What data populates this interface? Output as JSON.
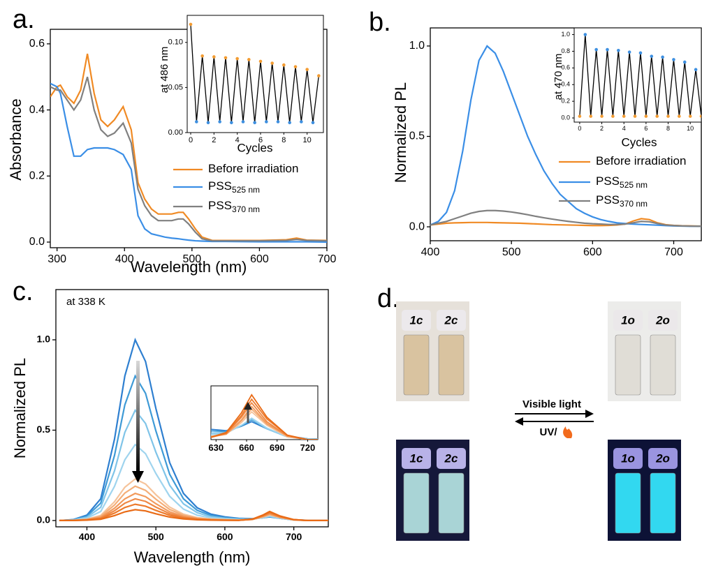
{
  "chart_data": [
    {
      "type": "line",
      "panel_label": "a.",
      "xlabel": "Wavelength (nm)",
      "ylabel": "Absorbance",
      "x": [
        290,
        300,
        305,
        315,
        325,
        335,
        345,
        355,
        365,
        375,
        385,
        398,
        410,
        420,
        430,
        440,
        450,
        460,
        470,
        480,
        487,
        495,
        505,
        515,
        530,
        550,
        600,
        640,
        655,
        670,
        700
      ],
      "series": [
        {
          "name": "Before irradiation",
          "color": "#f08a24",
          "values": [
            0.44,
            0.47,
            0.475,
            0.44,
            0.42,
            0.46,
            0.57,
            0.45,
            0.37,
            0.35,
            0.37,
            0.41,
            0.34,
            0.18,
            0.13,
            0.1,
            0.085,
            0.085,
            0.085,
            0.09,
            0.09,
            0.07,
            0.04,
            0.015,
            0.005,
            0.005,
            0.005,
            0.007,
            0.012,
            0.006,
            0.005
          ]
        },
        {
          "name": "PSS",
          "subscript": "525 nm",
          "color": "#3a8ee6",
          "values": [
            0.48,
            0.47,
            0.45,
            0.35,
            0.26,
            0.26,
            0.28,
            0.285,
            0.285,
            0.285,
            0.28,
            0.265,
            0.22,
            0.08,
            0.04,
            0.025,
            0.02,
            0.015,
            0.012,
            0.01,
            0.008,
            0.006,
            0.004,
            0.003,
            0.002,
            0.002,
            0.001,
            0.001,
            0.001,
            0.001,
            0.0
          ]
        },
        {
          "name": "PSS",
          "subscript": "370 nm",
          "color": "#808080",
          "values": [
            0.47,
            0.46,
            0.46,
            0.43,
            0.4,
            0.43,
            0.5,
            0.4,
            0.34,
            0.32,
            0.33,
            0.36,
            0.3,
            0.16,
            0.11,
            0.08,
            0.065,
            0.065,
            0.065,
            0.07,
            0.07,
            0.055,
            0.03,
            0.01,
            0.004,
            0.004,
            0.004,
            0.005,
            0.008,
            0.005,
            0.004
          ]
        }
      ],
      "xlim": [
        290,
        700
      ],
      "xticks": [
        300,
        400,
        500,
        600,
        700
      ],
      "ylim": [
        -0.017,
        0.644
      ],
      "yticks": [
        {
          "value": 0,
          "label": "0.0"
        },
        0.2,
        0.4,
        0.6
      ],
      "inset": {
        "xlabel": "Cycles",
        "ylabel": "at 486 nm",
        "line_color": "#000000",
        "point_colors": [
          "#f39c32",
          "#3d8fe0"
        ],
        "x": [
          0,
          0.5,
          1,
          1.5,
          2,
          2.5,
          3,
          3.5,
          4,
          4.5,
          5,
          5.5,
          6,
          6.5,
          7,
          7.5,
          8,
          8.5,
          9,
          9.5,
          10,
          10.5,
          11
        ],
        "values": [
          0.12,
          0.012,
          0.085,
          0.011,
          0.084,
          0.012,
          0.083,
          0.011,
          0.082,
          0.012,
          0.081,
          0.011,
          0.079,
          0.012,
          0.077,
          0.012,
          0.075,
          0.011,
          0.073,
          0.012,
          0.07,
          0.011,
          0.063
        ],
        "xlim": [
          -0.3,
          11.4
        ],
        "xticks": [
          0,
          2,
          4,
          6,
          8,
          10
        ],
        "ylim": [
          0,
          0.13
        ],
        "yticks": [
          {
            "value": 0,
            "label": "0.00"
          },
          {
            "value": 0.05,
            "label": "0.05"
          },
          {
            "value": 0.1,
            "label": "0.10"
          }
        ]
      }
    },
    {
      "type": "line",
      "panel_label": "b.",
      "ylabel": "Normalized PL",
      "x": [
        400,
        410,
        420,
        430,
        440,
        450,
        460,
        470,
        480,
        490,
        500,
        510,
        520,
        530,
        540,
        550,
        560,
        570,
        580,
        590,
        600,
        610,
        620,
        630,
        640,
        650,
        660,
        670,
        680,
        690,
        700,
        710,
        720,
        730,
        740,
        750
      ],
      "series": [
        {
          "name": "Before irradiation",
          "color": "#f08a24",
          "values": [
            0.01,
            0.015,
            0.02,
            0.022,
            0.023,
            0.024,
            0.024,
            0.024,
            0.023,
            0.022,
            0.021,
            0.02,
            0.018,
            0.016,
            0.014,
            0.012,
            0.011,
            0.01,
            0.009,
            0.008,
            0.007,
            0.007,
            0.008,
            0.01,
            0.015,
            0.032,
            0.045,
            0.04,
            0.022,
            0.012,
            0.008,
            0.006,
            0.005,
            0.004,
            0.004,
            0.003
          ]
        },
        {
          "name": "PSS",
          "subscript": "525 nm",
          "color": "#3a8ee6",
          "values": [
            0.01,
            0.03,
            0.08,
            0.2,
            0.42,
            0.7,
            0.92,
            1.0,
            0.96,
            0.86,
            0.74,
            0.62,
            0.5,
            0.4,
            0.31,
            0.24,
            0.18,
            0.14,
            0.1,
            0.075,
            0.055,
            0.04,
            0.03,
            0.022,
            0.018,
            0.015,
            0.013,
            0.011,
            0.009,
            0.007,
            0.005,
            0.004,
            0.003,
            0.003,
            0.002,
            0.002
          ]
        },
        {
          "name": "PSS",
          "subscript": "370 nm",
          "color": "#808080",
          "values": [
            0.01,
            0.02,
            0.03,
            0.045,
            0.06,
            0.075,
            0.085,
            0.09,
            0.09,
            0.087,
            0.082,
            0.075,
            0.067,
            0.058,
            0.05,
            0.043,
            0.036,
            0.03,
            0.025,
            0.02,
            0.017,
            0.015,
            0.013,
            0.013,
            0.015,
            0.022,
            0.03,
            0.028,
            0.018,
            0.01,
            0.007,
            0.005,
            0.004,
            0.003,
            0.003,
            0.002
          ]
        }
      ],
      "xlim": [
        400,
        734
      ],
      "xticks": [
        400,
        500,
        600,
        700
      ],
      "ylim": [
        -0.077,
        1.1
      ],
      "yticks": [
        {
          "value": 0,
          "label": "0.0"
        },
        0.5,
        {
          "value": 1,
          "label": "1.0"
        }
      ],
      "inset": {
        "xlabel": "Cycles",
        "ylabel": "at 470 nm",
        "line_color": "#000000",
        "point_colors": [
          "#f39c32",
          "#3d8fe0"
        ],
        "x": [
          0,
          0.5,
          1,
          1.5,
          2,
          2.5,
          3,
          3.5,
          4,
          4.5,
          5,
          5.5,
          6,
          6.5,
          7,
          7.5,
          8,
          8.5,
          9,
          9.5,
          10,
          10.5,
          11
        ],
        "values": [
          0.02,
          1.0,
          0.02,
          0.82,
          0.02,
          0.82,
          0.02,
          0.81,
          0.02,
          0.79,
          0.02,
          0.78,
          0.02,
          0.74,
          0.02,
          0.73,
          0.02,
          0.7,
          0.02,
          0.67,
          0.02,
          0.58,
          0.02
        ],
        "xlim": [
          -0.5,
          11
        ],
        "xticks": [
          0,
          2,
          4,
          6,
          8,
          10
        ],
        "ylim": [
          -0.05,
          1.08
        ],
        "yticks": [
          {
            "value": 0,
            "label": "0.0"
          },
          0.2,
          0.4,
          0.6,
          0.8,
          {
            "value": 1,
            "label": "1.0"
          }
        ]
      }
    },
    {
      "type": "line",
      "panel_label": "c.",
      "xlabel": "Wavelength (nm)",
      "ylabel": "Normalized PL",
      "annotation": "at 338 K",
      "x": [
        360,
        380,
        400,
        420,
        440,
        455,
        470,
        485,
        500,
        520,
        540,
        560,
        580,
        600,
        620,
        640,
        655,
        665,
        680,
        700,
        720,
        750
      ],
      "series": [
        {
          "color": "#2e7fd0",
          "values": [
            0,
            0.005,
            0.03,
            0.12,
            0.45,
            0.8,
            1,
            0.88,
            0.62,
            0.32,
            0.15,
            0.07,
            0.035,
            0.02,
            0.012,
            0.01,
            0.015,
            0.02,
            0.012,
            0.004,
            0.001,
            0
          ]
        },
        {
          "color": "#3e9ad6",
          "values": [
            0,
            0.004,
            0.024,
            0.096,
            0.36,
            0.64,
            0.8,
            0.704,
            0.496,
            0.256,
            0.12,
            0.056,
            0.028,
            0.016,
            0.01,
            0.009,
            0.015,
            0.022,
            0.012,
            0.003,
            0.001,
            0
          ]
        },
        {
          "color": "#7fc4e8",
          "values": [
            0,
            0.003,
            0.018,
            0.073,
            0.275,
            0.488,
            0.61,
            0.537,
            0.378,
            0.195,
            0.092,
            0.043,
            0.021,
            0.012,
            0.007,
            0.008,
            0.016,
            0.023,
            0.012,
            0.003,
            0.001,
            0
          ]
        },
        {
          "color": "#9fd4ee",
          "values": [
            0,
            0.002,
            0.013,
            0.05,
            0.189,
            0.336,
            0.42,
            0.37,
            0.26,
            0.134,
            0.063,
            0.029,
            0.015,
            0.008,
            0.005,
            0.007,
            0.016,
            0.024,
            0.013,
            0.003,
            0,
            0
          ]
        },
        {
          "color": "#f6c39a",
          "values": [
            0,
            0.001,
            0.007,
            0.028,
            0.104,
            0.184,
            0.23,
            0.202,
            0.143,
            0.074,
            0.035,
            0.016,
            0.008,
            0.005,
            0.003,
            0.006,
            0.019,
            0.031,
            0.016,
            0.003,
            0,
            0
          ]
        },
        {
          "color": "#f4ae78",
          "values": [
            0,
            0.001,
            0.006,
            0.023,
            0.086,
            0.152,
            0.19,
            0.167,
            0.118,
            0.061,
            0.029,
            0.013,
            0.007,
            0.004,
            0.002,
            0.006,
            0.021,
            0.034,
            0.017,
            0.004,
            0,
            0
          ]
        },
        {
          "color": "#f29a5c",
          "values": [
            0,
            0.001,
            0.005,
            0.018,
            0.068,
            0.12,
            0.15,
            0.132,
            0.093,
            0.048,
            0.023,
            0.011,
            0.005,
            0.003,
            0.002,
            0.006,
            0.022,
            0.037,
            0.018,
            0.004,
            0,
            0
          ]
        },
        {
          "color": "#ef8844",
          "values": [
            0,
            0.001,
            0.004,
            0.014,
            0.054,
            0.096,
            0.12,
            0.106,
            0.074,
            0.038,
            0.018,
            0.008,
            0.004,
            0.002,
            0.001,
            0.007,
            0.025,
            0.041,
            0.02,
            0.004,
            0,
            0
          ]
        },
        {
          "color": "#ec7a2c",
          "values": [
            0,
            0,
            0.003,
            0.011,
            0.041,
            0.072,
            0.09,
            0.079,
            0.056,
            0.029,
            0.014,
            0.006,
            0.003,
            0.002,
            0.001,
            0.007,
            0.027,
            0.045,
            0.023,
            0.005,
            0,
            0
          ]
        },
        {
          "color": "#e96b16",
          "values": [
            0,
            0,
            0.002,
            0.007,
            0.027,
            0.048,
            0.06,
            0.053,
            0.037,
            0.019,
            0.009,
            0.004,
            0.002,
            0.001,
            0.001,
            0.008,
            0.03,
            0.05,
            0.025,
            0.005,
            0,
            0
          ]
        }
      ],
      "xlim": [
        355,
        750
      ],
      "xticks": [
        400,
        500,
        600,
        700
      ],
      "ylim": [
        -0.035,
        1.278
      ],
      "yticks": [
        {
          "value": 0,
          "label": "0.0"
        },
        0.5,
        {
          "value": 1,
          "label": "1.0"
        }
      ],
      "inset": {
        "xlim": [
          625,
          730
        ],
        "xticks": [
          630,
          660,
          690,
          720
        ],
        "ylim": [
          0,
          0.06
        ]
      }
    }
  ],
  "photo_panel": {
    "label": "d.",
    "closed_daylight": [
      "1c",
      "2c"
    ],
    "open_daylight": [
      "1o",
      "2o"
    ],
    "closed_uv": [
      "1c",
      "2c"
    ],
    "open_uv": [
      "1o",
      "2o"
    ],
    "forward": "Visible light",
    "backward": "UV/"
  }
}
